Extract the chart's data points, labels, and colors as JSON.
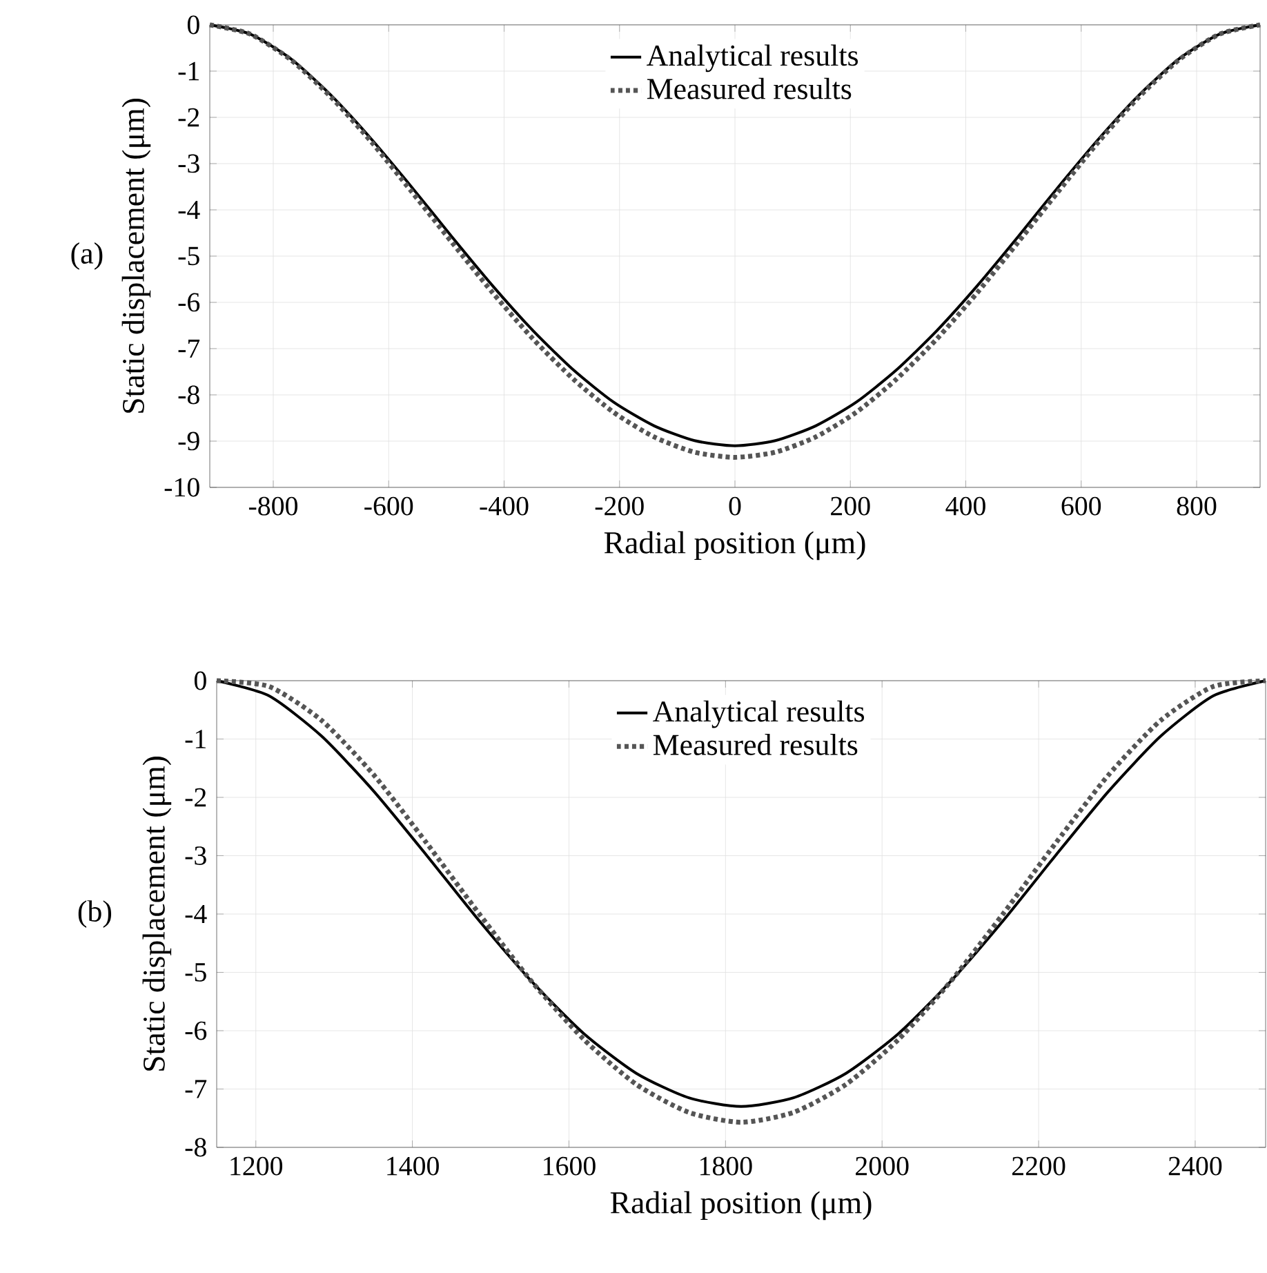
{
  "chart_data": [
    {
      "type": "line",
      "xlabel": "Radial position (μm)",
      "ylabel": "Static displacement (μm)",
      "annotations": [
        "(a)"
      ],
      "grid": true,
      "legend": "top",
      "xlim": [
        -910,
        910
      ],
      "ylim": [
        -10,
        0
      ],
      "xticks": [
        -800,
        -600,
        -400,
        -200,
        0,
        200,
        400,
        600,
        800
      ],
      "yticks": [
        0,
        -1,
        -2,
        -3,
        -4,
        -5,
        -6,
        -7,
        -8,
        -9,
        -10
      ],
      "x": [
        -910,
        -840,
        -770,
        -700,
        -630,
        -560,
        -490,
        -420,
        -350,
        -280,
        -210,
        -140,
        -70,
        0,
        70,
        140,
        210,
        280,
        350,
        420,
        490,
        560,
        630,
        700,
        770,
        840,
        910
      ],
      "series": [
        {
          "name": "Analytical results",
          "color": "#000000",
          "line_style": "solid",
          "values": [
            0,
            -0.2,
            -0.73,
            -1.52,
            -2.47,
            -3.51,
            -4.59,
            -5.64,
            -6.61,
            -7.46,
            -8.16,
            -8.67,
            -8.99,
            -9.1,
            -8.99,
            -8.67,
            -8.16,
            -7.46,
            -6.61,
            -5.64,
            -4.59,
            -3.51,
            -2.47,
            -1.52,
            -0.73,
            -0.2,
            0
          ]
        },
        {
          "name": "Measured results",
          "color": "#555555",
          "line_style": "dotted",
          "values": [
            0,
            -0.2,
            -0.75,
            -1.56,
            -2.53,
            -3.61,
            -4.71,
            -5.79,
            -6.79,
            -7.66,
            -8.38,
            -8.91,
            -9.24,
            -9.35,
            -9.24,
            -8.91,
            -8.38,
            -7.66,
            -6.79,
            -5.79,
            -4.71,
            -3.61,
            -2.53,
            -1.56,
            -0.75,
            -0.2,
            0
          ]
        }
      ]
    },
    {
      "type": "line",
      "xlabel": "Radial position (μm)",
      "ylabel": "Static displacement (μm)",
      "annotations": [
        "(b)"
      ],
      "grid": true,
      "legend": "top",
      "xlim": [
        1150,
        2490
      ],
      "ylim": [
        -8,
        0
      ],
      "xticks": [
        1200,
        1400,
        1600,
        1800,
        2000,
        2200,
        2400
      ],
      "yticks": [
        0,
        -1,
        -2,
        -3,
        -4,
        -5,
        -6,
        -7,
        -8
      ],
      "x": [
        1150,
        1217,
        1284,
        1351,
        1418,
        1485,
        1552,
        1619,
        1686,
        1753,
        1820,
        1887,
        1954,
        2021,
        2088,
        2155,
        2222,
        2289,
        2356,
        2423,
        2490
      ],
      "series": [
        {
          "name": "Analytical results",
          "color": "#000000",
          "line_style": "solid",
          "values": [
            0,
            -0.26,
            -0.95,
            -1.9,
            -2.99,
            -4.11,
            -5.15,
            -6.05,
            -6.73,
            -7.15,
            -7.3,
            -7.15,
            -6.73,
            -6.05,
            -5.15,
            -4.11,
            -2.99,
            -1.9,
            -0.95,
            -0.26,
            0
          ]
        },
        {
          "name": "Measured results",
          "color": "#555555",
          "line_style": "dotted",
          "values": [
            0,
            -0.1,
            -0.68,
            -1.62,
            -2.78,
            -3.99,
            -5.15,
            -6.15,
            -6.92,
            -7.4,
            -7.57,
            -7.4,
            -6.92,
            -6.15,
            -5.15,
            -3.99,
            -2.78,
            -1.62,
            -0.68,
            -0.1,
            0
          ]
        }
      ]
    }
  ]
}
